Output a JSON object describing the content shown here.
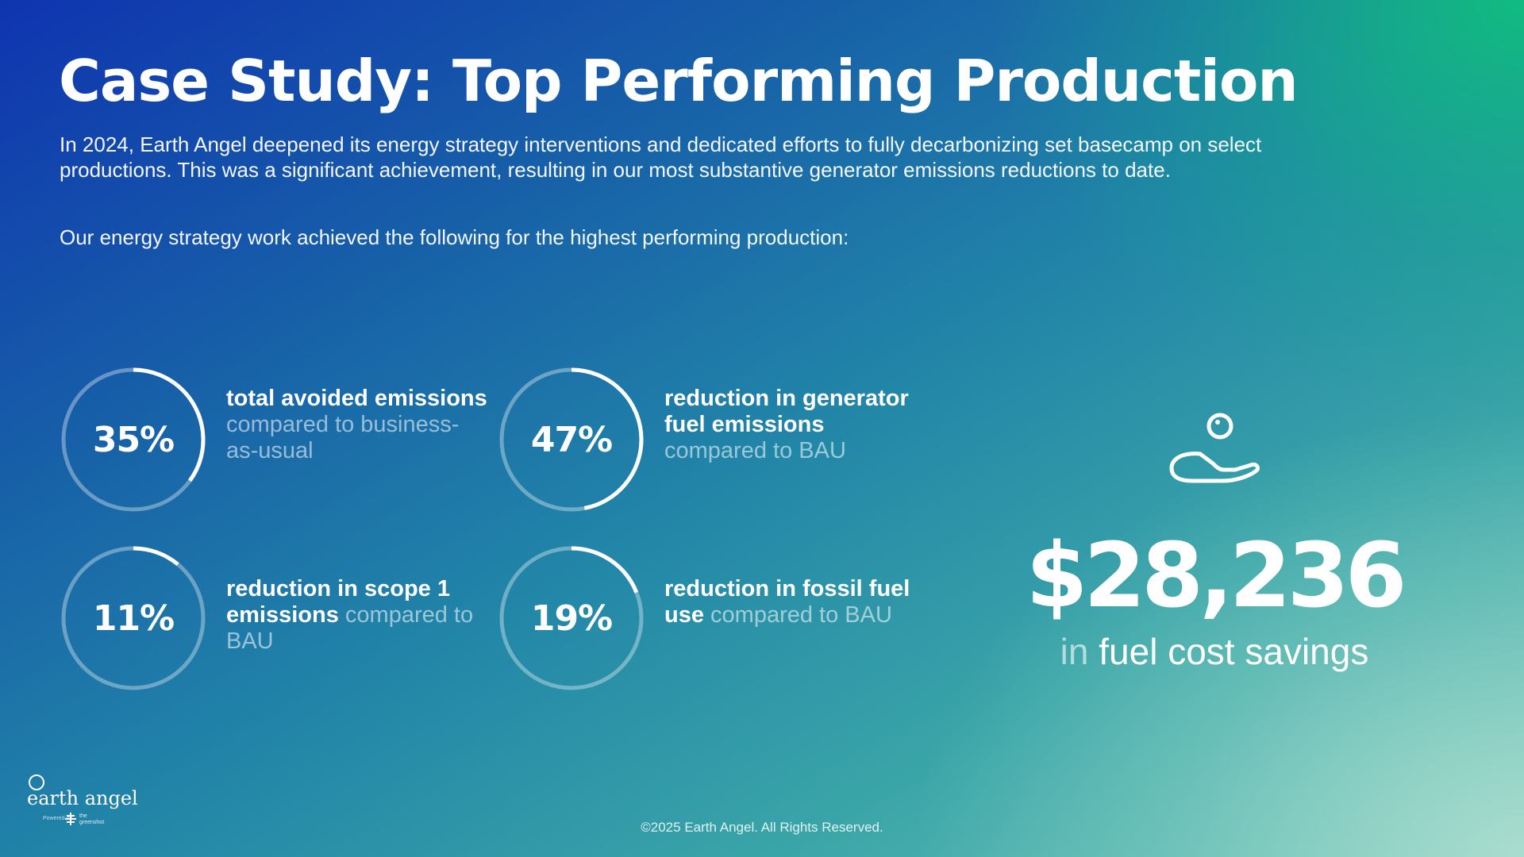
{
  "title": "Case Study: Top Performing Production",
  "intro": "In 2024, Earth Angel deepened its energy strategy interventions and dedicated efforts to fully decarbonizing set basecamp on select productions. This was a significant achievement, resulting in our most substantive generator emissions reductions to date.",
  "lead": "Our energy strategy work achieved the following for the highest performing production:",
  "stats": [
    {
      "value": "35%",
      "percent": 35,
      "bold": "total avoided emissions",
      "muted": "compared to business-as-usual"
    },
    {
      "value": "47%",
      "percent": 47,
      "bold": "reduction in generator fuel emissions",
      "muted": "compared to BAU"
    },
    {
      "value": "11%",
      "percent": 11,
      "bold": "reduction in scope 1 emissions",
      "muted": "compared to BAU"
    },
    {
      "value": "19%",
      "percent": 19,
      "bold": "reduction in fossil fuel use",
      "muted": "compared to BAU"
    }
  ],
  "savings": {
    "amount": "$28,236",
    "prefix": "in",
    "label": "fuel cost savings",
    "icon": "hand-coin-icon"
  },
  "logo": {
    "name": "earth angel",
    "powered_by": "Powered by",
    "partner": "the greenshot"
  },
  "footer": "©2025 Earth Angel. All Rights Reserved.",
  "colors": {
    "text": "#ffffff",
    "gradient_start": "#0f34b0",
    "gradient_mid": "#2286a8",
    "gradient_corner": "#10be7d"
  }
}
